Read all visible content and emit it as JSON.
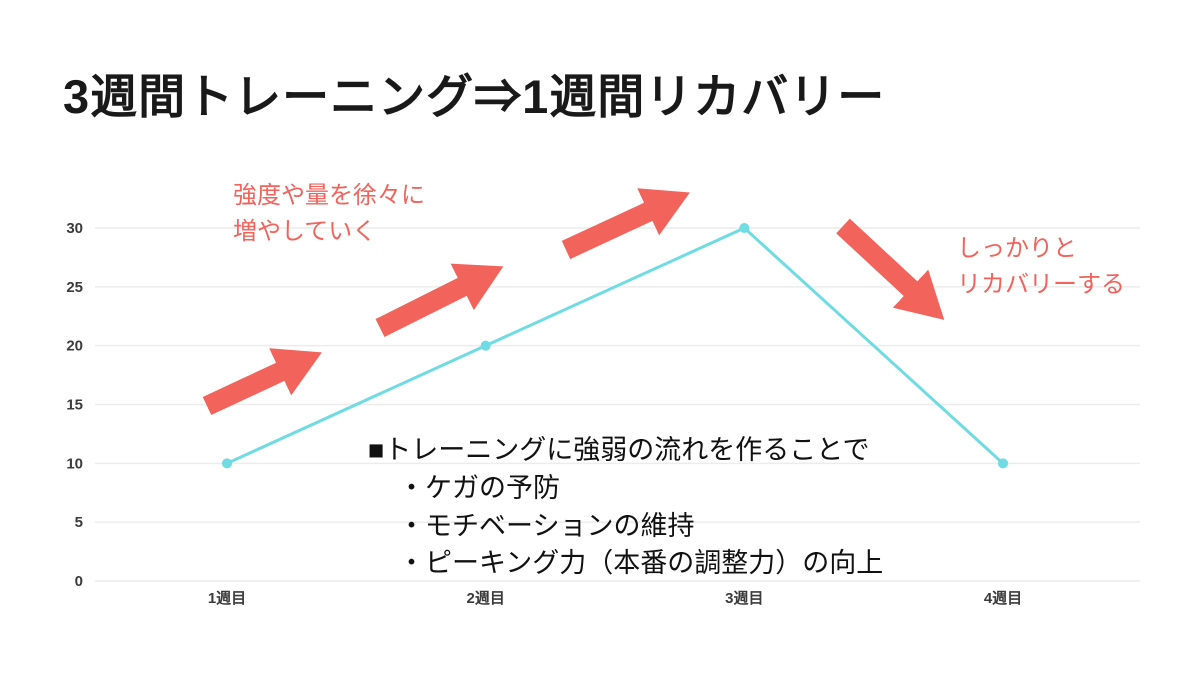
{
  "title": "3週間トレーニング⇒1週間リカバリー",
  "colors": {
    "accent": "#F2635C",
    "line": "#6FDBE3",
    "grid": "#ECECEC",
    "tick_text": "#3B3B3B"
  },
  "chart_data": {
    "type": "line",
    "title": "",
    "categories": [
      "1週目",
      "2週目",
      "3週目",
      "4週目"
    ],
    "values": [
      10,
      20,
      30,
      10
    ],
    "ylim": [
      0,
      30
    ],
    "yticks": [
      0,
      5,
      10,
      15,
      20,
      25,
      30
    ],
    "xlabel": "",
    "ylabel": "",
    "grid": true,
    "legend": false,
    "line_color": "#6FDBE3",
    "marker": "dot"
  },
  "annotations": {
    "increase": {
      "lines": [
        "強度や量を徐々に",
        "増やしていく"
      ]
    },
    "recovery": {
      "lines": [
        "しっかりと",
        "リカバリーする"
      ]
    },
    "bullets": {
      "header": "■トレーニングに強弱の流れを作ることで",
      "items": [
        "・ケガの予防",
        "・モチベーションの維持",
        "・ピーキング力（本番の調整力）の向上"
      ]
    }
  },
  "icons": {
    "trend_up": "up-right-arrow",
    "trend_down": "down-right-arrow"
  }
}
